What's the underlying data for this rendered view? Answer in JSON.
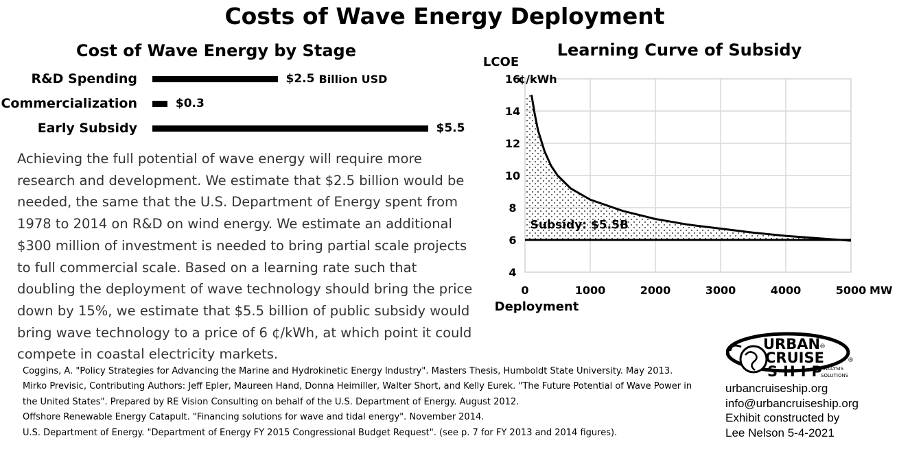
{
  "title": "Costs of Wave Energy Deployment",
  "left_panel": {
    "subtitle": "Cost of Wave Energy by Stage",
    "unit_label": "Billion USD"
  },
  "paragraph": "Achieving the full potential of wave energy will require more research and development. We estimate that $2.5 billion would be needed, the same that the U.S. Department of Energy spent from 1978 to 2014 on R&D on wind energy. We estimate an additional $300 million of investment is needed to bring partial scale projects to full commercial scale. Based on a learning rate such that doubling the deployment of wave technology should bring the price down by 15%, we estimate that $5.5 billion of public subsidy would bring wave technology to a price of 6 ¢/kWh, at which point it could compete in coastal electricity markets.",
  "references": [
    "Coggins, A. \"Policy Strategies for Advancing the Marine and Hydrokinetic Energy Industry\". Masters Thesis, Humboldt State University. May 2013.",
    "Mirko Previsic, Contributing Authors: Jeff Epler, Maureen Hand, Donna Heimiller, Walter Short, and Kelly Eurek. \"The Future Potential of Wave Power in the United States\". Prepared by RE Vision Consulting on behalf of the U.S. Department of Energy. August 2012.",
    "Offshore Renewable Energy Catapult. \"Financing solutions for wave and tidal energy\". November 2014.",
    "U.S. Department of Energy. \"Department of Energy FY 2015 Congressional Budget Request\". (see p. 7 for FY 2013 and 2014 figures)."
  ],
  "logo": {
    "line1": "URBAN",
    "line2": "CRUISE",
    "line3": "SHIP",
    "tag1": "ANALYSIS",
    "tag2": "SOLUTIONS",
    "reg": "®"
  },
  "contact": {
    "website": "urbancruiseship.org",
    "email": "info@urbancruiseship.org",
    "credit1": "Exhibit constructed by",
    "credit2": "Lee Nelson 5-4-2021"
  },
  "chart_data": [
    {
      "type": "bar",
      "orientation": "horizontal",
      "title": "Cost of Wave Energy by Stage",
      "categories": [
        "R&D Spending",
        "Commercialization",
        "Early Subsidy"
      ],
      "values": [
        2.5,
        0.3,
        5.5
      ],
      "value_labels": [
        "$2.5",
        "$0.3",
        "$5.5"
      ],
      "unit": "Billion USD",
      "grid": false
    },
    {
      "type": "line",
      "title": "Learning Curve of Subsidy",
      "xlabel": "Deployment",
      "x_unit": "MW",
      "ylabel": "LCOE",
      "y_unit": "¢/kWh",
      "xlim": [
        0,
        5000
      ],
      "ylim": [
        4,
        16
      ],
      "x_ticks": [
        0,
        1000,
        2000,
        3000,
        4000,
        5000
      ],
      "y_ticks": [
        4,
        6,
        8,
        10,
        12,
        14,
        16
      ],
      "grid": true,
      "series": [
        {
          "x": [
            100,
            150,
            200,
            300,
            400,
            500,
            700,
            1000,
            1500,
            2000,
            2500,
            3000,
            3500,
            4000,
            4500,
            5000
          ],
          "y": [
            15.0,
            13.8,
            12.8,
            11.5,
            10.6,
            10.0,
            9.2,
            8.5,
            7.8,
            7.3,
            6.95,
            6.7,
            6.45,
            6.25,
            6.1,
            5.95
          ]
        },
        {
          "x": [
            0,
            5000
          ],
          "y": [
            6,
            6
          ]
        }
      ],
      "annotation": "Subsidy: $5.5B"
    }
  ]
}
